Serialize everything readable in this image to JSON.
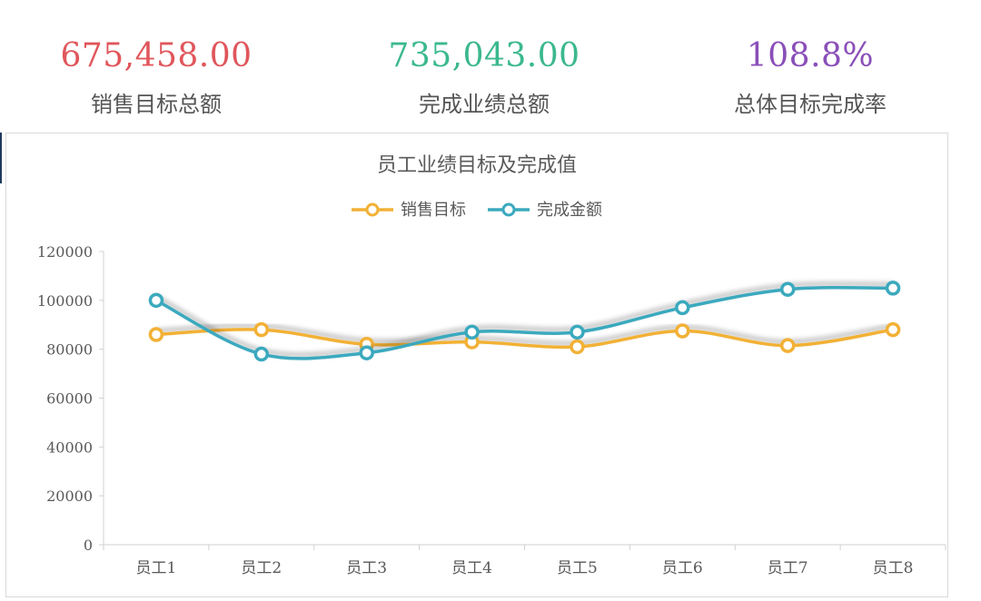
{
  "kpis": [
    {
      "value": "675,458.00",
      "label": "销售目标总额",
      "color": "#e0565b"
    },
    {
      "value": "735,043.00",
      "label": "完成业绩总额",
      "color": "#3bb88e"
    },
    {
      "value": "108.8%",
      "label": "总体目标完成率",
      "color": "#8a4fb8"
    }
  ],
  "chart_data": {
    "type": "line",
    "title": "员工业绩目标及完成值",
    "categories": [
      "员工1",
      "员工2",
      "员工3",
      "员工4",
      "员工5",
      "员工6",
      "员工7",
      "员工8"
    ],
    "series": [
      {
        "name": "销售目标",
        "color": "#f2b136",
        "values": [
          86000,
          88000,
          82000,
          83000,
          81000,
          87500,
          81500,
          88000
        ]
      },
      {
        "name": "完成金额",
        "color": "#3ba9be",
        "values": [
          100000,
          78000,
          78500,
          87000,
          87000,
          97000,
          104500,
          105000
        ]
      }
    ],
    "ylim": [
      0,
      120000
    ],
    "yticks": [
      0,
      20000,
      40000,
      60000,
      80000,
      100000,
      120000
    ],
    "smooth": true,
    "grid": false,
    "legend_position": "top"
  }
}
